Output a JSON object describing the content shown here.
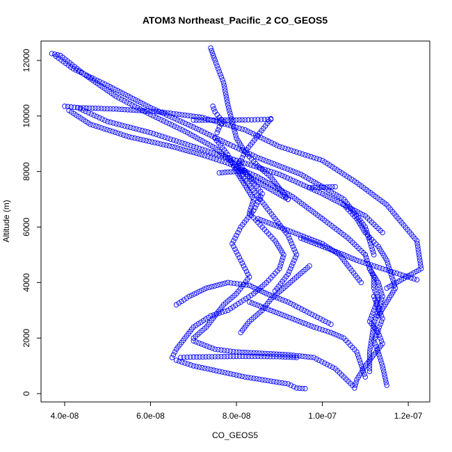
{
  "chart_data": {
    "type": "scatter",
    "title": "ATOM3 Northeast_Pacific_2 CO_GEOS5",
    "xlabel": "CO_GEOS5",
    "ylabel": "Altitude (m)",
    "xlim": [
      3.45e-08,
      1.25e-07
    ],
    "ylim": [
      -300,
      12700
    ],
    "x_ticks": [
      4e-08,
      6e-08,
      8e-08,
      1e-07,
      1.2e-07
    ],
    "x_tick_labels": [
      "4.0e-08",
      "6.0e-08",
      "8.0e-08",
      "1.0e-07",
      "1.2e-07"
    ],
    "y_ticks": [
      0,
      2000,
      4000,
      6000,
      8000,
      10000,
      12000
    ],
    "y_tick_labels": [
      "0",
      "2000",
      "4000",
      "6000",
      "8000",
      "10000",
      "12000"
    ],
    "marker": "open-circle",
    "color": "#0000ff",
    "grid": false,
    "legend": "none",
    "series": [
      {
        "x": [
          3.7e-08,
          3.9e-08,
          4.5e-08,
          5.2e-08,
          6e-08,
          6.8e-08,
          7.5e-08,
          8e-08,
          8.4e-08,
          8.8e-08,
          9.2e-08
        ],
        "y": [
          12250,
          12180,
          11450,
          10700,
          10050,
          9450,
          8850,
          8200,
          7700,
          7350,
          7000
        ]
      },
      {
        "x": [
          3.8e-08,
          4.2e-08,
          5e-08,
          6e-08,
          7e-08,
          7.8e-08,
          8.5e-08,
          9.5e-08,
          1.05e-07,
          1.1e-07,
          1.12e-07
        ],
        "y": [
          12150,
          11700,
          11100,
          10300,
          9600,
          9000,
          8500,
          7900,
          7000,
          6000,
          5000
        ]
      },
      {
        "x": [
          4e-08,
          4.3e-08,
          5e-08,
          6e-08,
          7e-08,
          8e-08,
          9e-08,
          1e-07,
          1.1e-07,
          1.14e-07
        ],
        "y": [
          10350,
          10300,
          9800,
          9400,
          8900,
          8400,
          7900,
          7200,
          6400,
          5800
        ]
      },
      {
        "x": [
          4.1e-08,
          4.6e-08,
          5.5e-08,
          6.5e-08,
          7.2e-08,
          7.8e-08,
          8.5e-08,
          9.3e-08,
          1e-07,
          1.06e-07,
          1.1e-07
        ],
        "y": [
          10200,
          9700,
          9250,
          8900,
          8600,
          8300,
          7800,
          7100,
          6300,
          5600,
          5000
        ]
      },
      {
        "x": [
          4.3e-08,
          5.2e-08,
          6.2e-08,
          7.2e-08,
          8.2e-08,
          9e-08,
          1e-07,
          1.08e-07,
          1.15e-07,
          1.22e-07,
          1.23e-07,
          1.15e-07
        ],
        "y": [
          10300,
          10250,
          10150,
          9950,
          9500,
          8900,
          8400,
          7600,
          6800,
          5500,
          4500,
          3800
        ]
      },
      {
        "x": [
          7.4e-08,
          7.5e-08,
          7.7e-08,
          7.8e-08,
          7.9e-08,
          8e-08,
          8.2e-08,
          8.5e-08,
          8.8e-08,
          9e-08,
          9.2e-08
        ],
        "y": [
          12450,
          12000,
          11200,
          10400,
          9800,
          9200,
          8700,
          8200,
          7800,
          7400,
          7000
        ]
      },
      {
        "x": [
          7.45e-08,
          7.5e-08,
          7.6e-08,
          7.7e-08,
          7.6e-08,
          7.55e-08
        ],
        "y": [
          10350,
          10150,
          9950,
          9800,
          9600,
          9400
        ]
      },
      {
        "x": [
          7e-08,
          7.4e-08,
          7.8e-08,
          8.2e-08,
          8.5e-08,
          8.8e-08
        ],
        "y": [
          9850,
          9850,
          9850,
          9860,
          9870,
          9880
        ]
      },
      {
        "x": [
          7.6e-08,
          7.8e-08,
          8e-08,
          8.2e-08
        ],
        "y": [
          7950,
          7980,
          8000,
          8020
        ]
      },
      {
        "x": [
          9.7e-08,
          9.9e-08,
          1.01e-07,
          1.03e-07
        ],
        "y": [
          7420,
          7430,
          7440,
          7450
        ]
      },
      {
        "x": [
          7.5e-08,
          7.8e-08,
          8e-08,
          8.2e-08,
          8.4e-08,
          8.3e-08,
          8.6e-08,
          8.9e-08,
          9.1e-08,
          9e-08,
          8.7e-08,
          8.4e-08,
          8.1e-08,
          7.8e-08,
          7.4e-08,
          7e-08,
          6.8e-08,
          6.6e-08,
          6.5e-08
        ],
        "y": [
          9200,
          8600,
          8000,
          7500,
          7000,
          6500,
          6000,
          5500,
          5000,
          4500,
          4000,
          3600,
          3300,
          3000,
          2800,
          2400,
          2000,
          1600,
          1300
        ]
      },
      {
        "x": [
          8.8e-08,
          8.5e-08,
          8.2e-08,
          8e-08,
          8.3e-08,
          8.6e-08,
          8.9e-08,
          9.2e-08,
          9.4e-08,
          9.2e-08,
          8.9e-08
        ],
        "y": [
          9900,
          9300,
          8700,
          8100,
          7500,
          6900,
          6300,
          5700,
          5000,
          4300,
          3700
        ]
      },
      {
        "x": [
          8e-08,
          8.3e-08,
          8.6e-08,
          8.4e-08,
          8.1e-08,
          7.9e-08,
          8.1e-08,
          8.3e-08,
          8e-08,
          7.7e-08,
          7.5e-08,
          7.3e-08,
          7e-08
        ],
        "y": [
          8400,
          7800,
          7200,
          6600,
          6000,
          5400,
          4800,
          4200,
          3600,
          3200,
          2800,
          2400,
          2000
        ]
      },
      {
        "x": [
          6.7e-08,
          7e-08,
          7.5e-08,
          8e-08,
          8.5e-08,
          9e-08,
          9.4e-08
        ],
        "y": [
          1300,
          1320,
          1330,
          1340,
          1340,
          1330,
          1300
        ]
      },
      {
        "x": [
          6.6e-08,
          7e-08,
          7.6e-08,
          8.2e-08,
          8.8e-08,
          9.2e-08,
          9.4e-08,
          9.6e-08
        ],
        "y": [
          1200,
          1000,
          800,
          600,
          450,
          350,
          200,
          180
        ]
      },
      {
        "x": [
          7e-08,
          7.5e-08,
          8e-08,
          8.6e-08,
          9.2e-08,
          9.8e-08,
          1.03e-07,
          1.07e-07
        ],
        "y": [
          1900,
          1600,
          1500,
          1450,
          1400,
          1300,
          900,
          300
        ]
      },
      {
        "x": [
          8.3e-08,
          8.8e-08,
          9.3e-08,
          9.8e-08,
          1.02e-07,
          1.05e-07,
          1.08e-07,
          1.1e-07
        ],
        "y": [
          3300,
          3000,
          2700,
          2400,
          2200,
          2000,
          1500,
          600
        ]
      },
      {
        "x": [
          1.11e-07,
          1.12e-07,
          1.12e-07,
          1.13e-07,
          1.12e-07,
          1.11e-07,
          1.13e-07,
          1.14e-07,
          1.12e-07,
          1.1e-07,
          1.08e-07,
          1.075e-07
        ],
        "y": [
          4500,
          4200,
          3800,
          3400,
          3000,
          2600,
          2200,
          1800,
          1400,
          1000,
          500,
          200
        ]
      },
      {
        "x": [
          1.12e-07,
          1.13e-07,
          1.14e-07,
          1.13e-07,
          1.12e-07,
          1.13e-07,
          1.14e-07,
          1.15e-07
        ],
        "y": [
          3500,
          3100,
          2700,
          2300,
          1900,
          1500,
          1000,
          300
        ]
      },
      {
        "x": [
          1.1e-07,
          1.11e-07,
          1.13e-07,
          1.14e-07,
          1.13e-07,
          1.12e-07,
          1.11e-07,
          1.11e-07
        ],
        "y": [
          5000,
          4500,
          4000,
          3500,
          3000,
          2500,
          1500,
          800
        ]
      },
      {
        "x": [
          1.05e-07,
          1.08e-07,
          1.1e-07,
          1.13e-07,
          1.15e-07,
          1.16e-07,
          1.17e-07,
          1.15e-07,
          1.13e-07
        ],
        "y": [
          6800,
          6300,
          5800,
          5300,
          4800,
          4300,
          3800,
          3300,
          2800
        ]
      },
      {
        "x": [
          9.5e-08,
          1e-07,
          1.05e-07,
          1.08e-07,
          1.12e-07,
          1.16e-07,
          1.2e-07,
          1.22e-07
        ],
        "y": [
          5600,
          5300,
          5000,
          4800,
          4600,
          4400,
          4200,
          4100
        ]
      },
      {
        "x": [
          6.6e-08,
          6.9e-08,
          7.3e-08,
          7.8e-08,
          8.3e-08,
          8.7e-08,
          9.2e-08,
          9.7e-08,
          1.02e-07
        ],
        "y": [
          3200,
          3500,
          3800,
          4000,
          3900,
          3600,
          3300,
          2900,
          2500
        ]
      },
      {
        "x": [
          8.1e-08,
          8.3e-08,
          8.6e-08,
          8.8e-08,
          9.1e-08,
          9.4e-08,
          9.7e-08
        ],
        "y": [
          2200,
          2600,
          3000,
          3400,
          3800,
          4200,
          4600
        ]
      },
      {
        "x": [
          8.5e-08,
          9e-08,
          9.5e-08,
          1e-07,
          1.04e-07,
          1.06e-07,
          1.09e-07
        ],
        "y": [
          6300,
          6000,
          5700,
          5400,
          5000,
          4600,
          4000
        ]
      }
    ]
  }
}
